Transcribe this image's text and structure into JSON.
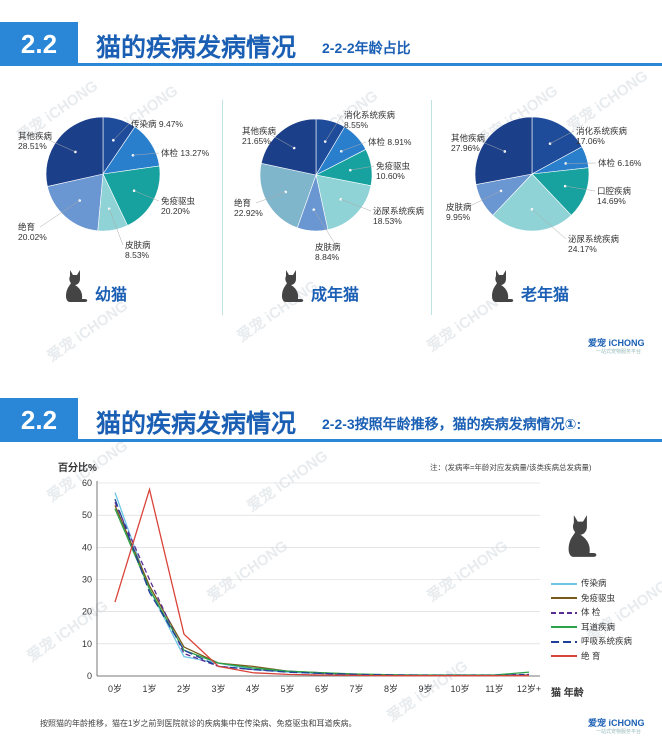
{
  "watermark": "爱宠 iCHONG",
  "section1": {
    "number": "2.2",
    "title": "猫的疾病发病情况",
    "subtitle": "2-2-2年龄占比",
    "brand": "爱宠 iCHONG",
    "brand_sub": "一站式宠物服务平台"
  },
  "section2": {
    "number": "2.2",
    "title": "猫的疾病发病情况",
    "subtitle": "2-2-3按照年龄推移，猫的疾病发病情况①:",
    "note": "注：(发病率=年龄对应发病量/该类疾病总发病量)",
    "footnote": "按照猫的年龄推移，猫在1岁之前到医院就诊的疾病集中在传染病、免疫驱虫和耳道疾病。",
    "brand": "爱宠 iCHONG",
    "brand_sub": "一站式宠物服务平台"
  },
  "chart_data": [
    {
      "type": "pie",
      "category_label": "幼猫",
      "icon": "cat-silhouette-icon",
      "slices": [
        {
          "label": "传染病",
          "percent": "9.47%",
          "value": 9.47,
          "color": "#1f4c9a"
        },
        {
          "label": "体检",
          "percent": "13.27%",
          "value": 13.27,
          "color": "#2a7fcd"
        },
        {
          "label": "免疫驱虫",
          "percent": "20.20%",
          "value": 20.2,
          "color": "#17a2a0"
        },
        {
          "label": "皮肤病",
          "percent": "8.53%",
          "value": 8.53,
          "color": "#8fd3d6"
        },
        {
          "label": "绝育",
          "percent": "20.02%",
          "value": 20.02,
          "color": "#6a96d2"
        },
        {
          "label": "其他疾病",
          "percent": "28.51%",
          "value": 28.51,
          "color": "#1c3f8a"
        }
      ]
    },
    {
      "type": "pie",
      "category_label": "成年猫",
      "icon": "cat-silhouette-icon",
      "slices": [
        {
          "label": "消化系统疾病",
          "percent": "8.55%",
          "value": 8.55,
          "color": "#1f4c9a"
        },
        {
          "label": "体检",
          "percent": "8.91%",
          "value": 8.91,
          "color": "#2a7fcd"
        },
        {
          "label": "免疫驱虫",
          "percent": "10.60%",
          "value": 10.6,
          "color": "#17a2a0"
        },
        {
          "label": "泌尿系统疾病",
          "percent": "18.53%",
          "value": 18.53,
          "color": "#8fd3d6"
        },
        {
          "label": "皮肤病",
          "percent": "8.84%",
          "value": 8.84,
          "color": "#6a96d2"
        },
        {
          "label": "绝育",
          "percent": "22.92%",
          "value": 22.92,
          "color": "#7fb6cc"
        },
        {
          "label": "其他疾病",
          "percent": "21.65%",
          "value": 21.65,
          "color": "#1c3f8a"
        }
      ]
    },
    {
      "type": "pie",
      "category_label": "老年猫",
      "icon": "cat-silhouette-icon",
      "slices": [
        {
          "label": "消化系统疾病",
          "percent": "17.06%",
          "value": 17.06,
          "color": "#1f4c9a"
        },
        {
          "label": "体检",
          "percent": "6.16%",
          "value": 6.16,
          "color": "#2a7fcd"
        },
        {
          "label": "口腔疾病",
          "percent": "14.69%",
          "value": 14.69,
          "color": "#17a2a0"
        },
        {
          "label": "泌尿系统疾病",
          "percent": "24.17%",
          "value": 24.17,
          "color": "#8fd3d6"
        },
        {
          "label": "皮肤病",
          "percent": "9.95%",
          "value": 9.95,
          "color": "#6a96d2"
        },
        {
          "label": "其他疾病",
          "percent": "27.96%",
          "value": 27.96,
          "color": "#1c3f8a"
        }
      ]
    },
    {
      "type": "line",
      "ylabel": "百分比%",
      "xlabel": "猫 年龄",
      "ylim": [
        0,
        60
      ],
      "yticks": [
        0,
        10,
        20,
        30,
        40,
        50,
        60
      ],
      "categories": [
        "0岁",
        "1岁",
        "2岁",
        "3岁",
        "4岁",
        "5岁",
        "6岁",
        "7岁",
        "8岁",
        "9岁",
        "10岁",
        "11岁",
        "12岁+"
      ],
      "grid": true,
      "legend_position": "right",
      "series": [
        {
          "name": "传染病",
          "color": "#6ec6e6",
          "dash": "",
          "values": [
            57,
            27,
            6,
            4,
            2,
            1.2,
            0.8,
            0.5,
            0.3,
            0.2,
            0.2,
            0.2,
            0.2
          ]
        },
        {
          "name": "免疫驱虫",
          "color": "#7a5a1a",
          "dash": "",
          "values": [
            53,
            28,
            9,
            4,
            3,
            1.5,
            1,
            0.5,
            0.3,
            0.2,
            0.2,
            0.2,
            0.3
          ]
        },
        {
          "name": "体  检",
          "color": "#5b2c91",
          "dash": "5,3",
          "values": [
            54,
            30,
            7,
            3,
            2,
            1.5,
            0.8,
            0.5,
            0.3,
            0.3,
            0.3,
            0.3,
            0.5
          ]
        },
        {
          "name": "耳道疾病",
          "color": "#2aa34a",
          "dash": "",
          "values": [
            52,
            27,
            8,
            4,
            2.5,
            1.5,
            1,
            0.6,
            0.4,
            0.3,
            0.3,
            0.3,
            1.2
          ]
        },
        {
          "name": "呼吸系统疾病",
          "color": "#1f3f9a",
          "dash": "8,4",
          "values": [
            55,
            26,
            8,
            3,
            2,
            1.2,
            0.8,
            0.5,
            0.3,
            0.2,
            0.2,
            0.2,
            0.3
          ]
        },
        {
          "name": "绝  育",
          "color": "#d9443a",
          "dash": "",
          "values": [
            23,
            58,
            13,
            3,
            1,
            0.5,
            0.3,
            0.2,
            0.1,
            0.1,
            0.1,
            0.1,
            0.1
          ]
        }
      ]
    }
  ]
}
